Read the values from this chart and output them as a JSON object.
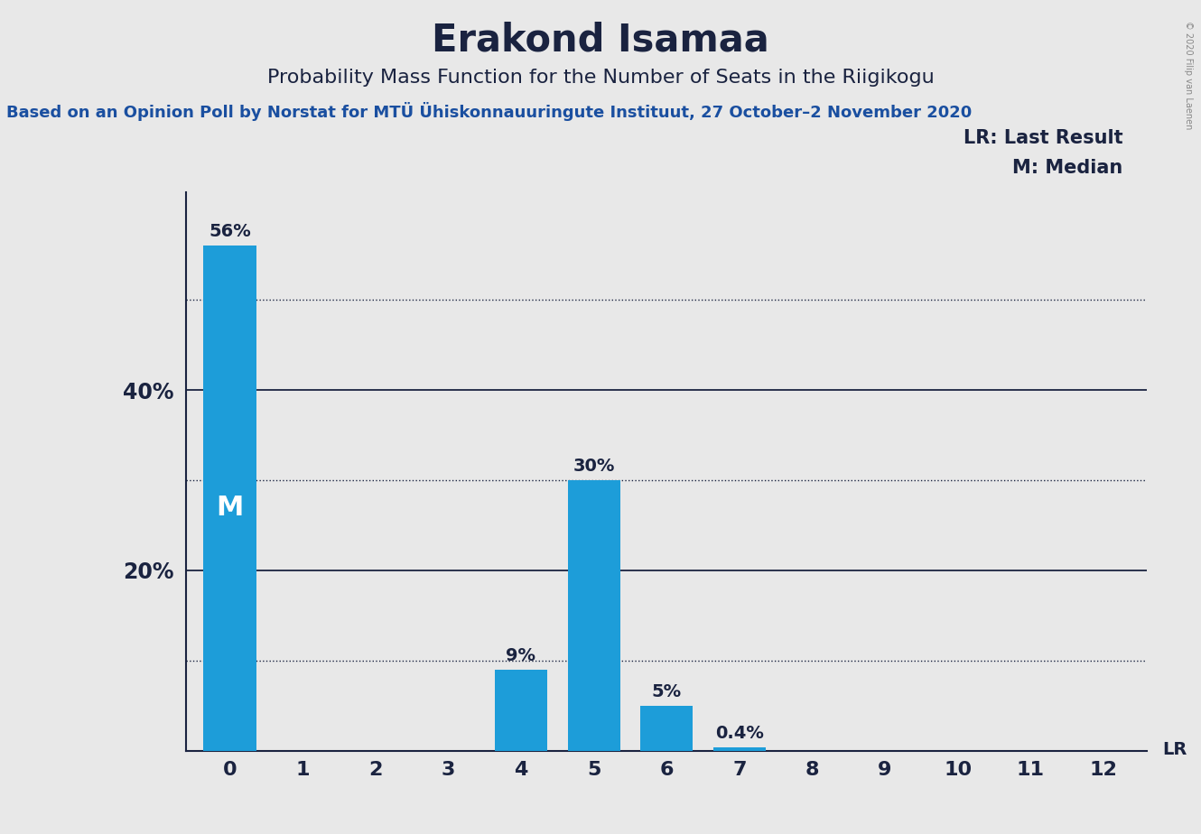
{
  "title": "Erakond Isamaa",
  "subtitle": "Probability Mass Function for the Number of Seats in the Riigikogu",
  "source_text": "Based on an Opinion Poll by Norstat for MTÜ Ühiskonnauuringute Instituut, 27 October–2 November 2020",
  "copyright_text": "© 2020 Filip van Laenen",
  "categories": [
    0,
    1,
    2,
    3,
    4,
    5,
    6,
    7,
    8,
    9,
    10,
    11,
    12
  ],
  "values": [
    56,
    0,
    0,
    0,
    9,
    30,
    5,
    0.4,
    0,
    0,
    0,
    0,
    0
  ],
  "bar_color": "#1d9dd9",
  "background_color": "#e8e8e8",
  "plot_bg_color": "#e8e8e8",
  "text_color": "#1a2340",
  "title_fontsize": 30,
  "subtitle_fontsize": 16,
  "source_fontsize": 13,
  "ylim": [
    0,
    62
  ],
  "legend_lr_text": "LR: Last Result",
  "legend_m_text": "M: Median",
  "median_bar": 0,
  "solid_lines": [
    20,
    40
  ],
  "dotted_lines": [
    10,
    30,
    50
  ],
  "ytick_labels_shown": [
    20,
    40
  ],
  "label_fontsize": 14,
  "bar_label_fontsize": 14
}
